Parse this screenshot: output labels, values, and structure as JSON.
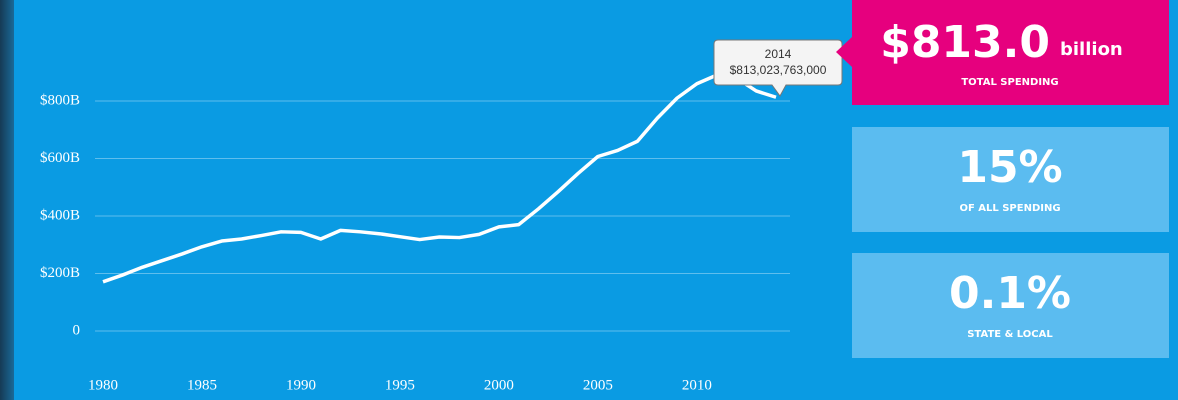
{
  "chart_data": {
    "type": "line",
    "x": [
      1980,
      1981,
      1982,
      1983,
      1984,
      1985,
      1986,
      1987,
      1988,
      1989,
      1990,
      1991,
      1992,
      1993,
      1994,
      1995,
      1996,
      1997,
      1998,
      1999,
      2000,
      2001,
      2002,
      2003,
      2004,
      2005,
      2006,
      2007,
      2008,
      2009,
      2010,
      2011,
      2012,
      2013,
      2014
    ],
    "series": [
      {
        "color": "#ffffff",
        "values": [
          171,
          195,
          222,
          245,
          268,
          293,
          313,
          320,
          332,
          345,
          343,
          320,
          350,
          345,
          338,
          328,
          318,
          327,
          325,
          336,
          362,
          370,
          425,
          485,
          548,
          607,
          628,
          660,
          740,
          810,
          860,
          890,
          880,
          835,
          813
        ]
      }
    ],
    "xlim": [
      1980,
      2014
    ],
    "xticks": [
      1980,
      1985,
      1990,
      1995,
      2000,
      2005,
      2010
    ],
    "ylim": [
      0,
      1000
    ],
    "yticks": [
      0,
      {
        "value": 200,
        "label": "$200B"
      },
      {
        "value": 400,
        "label": "$400B"
      },
      {
        "value": 600,
        "label": "$600B"
      },
      {
        "value": 800,
        "label": "$800B"
      }
    ],
    "grid": true,
    "tooltip": {
      "x": "2014",
      "text": "$813,023,763,000"
    }
  },
  "cards": [
    {
      "value": "$813.0",
      "unit": "billion",
      "label": "TOTAL SPENDING"
    },
    {
      "value": "15%",
      "label": "OF ALL SPENDING"
    },
    {
      "value": "0.1%",
      "label": "STATE & LOCAL"
    }
  ]
}
